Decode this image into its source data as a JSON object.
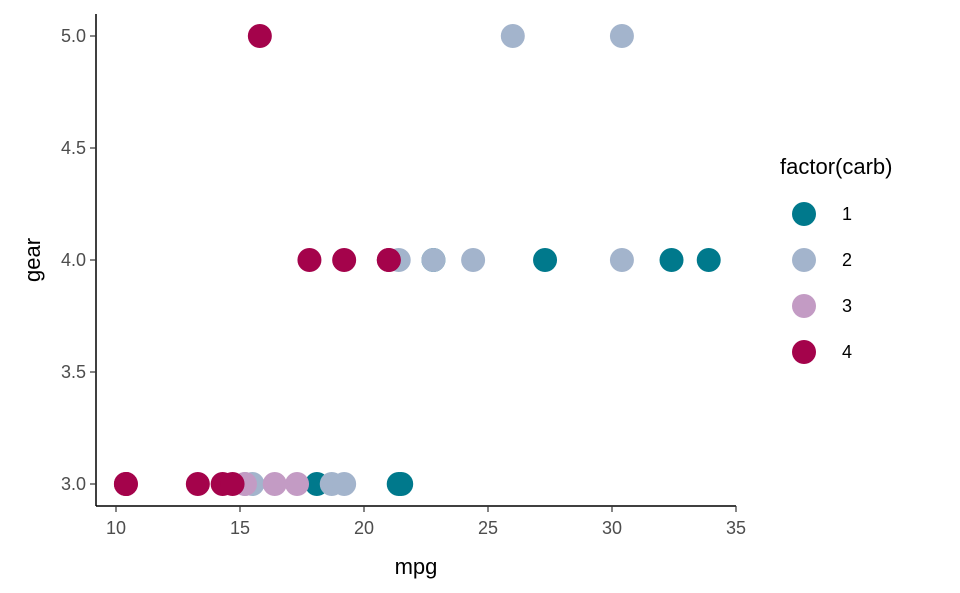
{
  "chart_data": {
    "type": "scatter",
    "xlabel": "mpg",
    "ylabel": "gear",
    "xlim": [
      9.2,
      35.0
    ],
    "ylim": [
      2.9,
      5.1
    ],
    "x_ticks": [
      10,
      15,
      20,
      25,
      30,
      35
    ],
    "y_ticks": [
      3.0,
      3.5,
      4.0,
      4.5,
      5.0
    ],
    "x_tick_labels": [
      "10",
      "15",
      "20",
      "25",
      "30",
      "35"
    ],
    "y_tick_labels": [
      "3.0",
      "3.5",
      "4.0",
      "4.5",
      "5.0"
    ],
    "grid": false,
    "legend": {
      "title": "factor(carb)",
      "position": "right",
      "entries": [
        {
          "label": "1",
          "color": "#00798c"
        },
        {
          "label": "2",
          "color": "#a3b4cc"
        },
        {
          "label": "3",
          "color": "#c39bc4"
        },
        {
          "label": "4",
          "color": "#a4034b"
        }
      ]
    },
    "series": [
      {
        "name": "1",
        "color": "#00798c",
        "points": [
          {
            "x": 21.4,
            "y": 3
          },
          {
            "x": 18.1,
            "y": 3
          },
          {
            "x": 21.5,
            "y": 3
          },
          {
            "x": 22.8,
            "y": 4
          },
          {
            "x": 32.4,
            "y": 4
          },
          {
            "x": 33.9,
            "y": 4
          },
          {
            "x": 27.3,
            "y": 4
          }
        ]
      },
      {
        "name": "2",
        "color": "#a3b4cc",
        "points": [
          {
            "x": 18.7,
            "y": 3
          },
          {
            "x": 15.5,
            "y": 3
          },
          {
            "x": 15.2,
            "y": 3
          },
          {
            "x": 19.2,
            "y": 3
          },
          {
            "x": 24.4,
            "y": 4
          },
          {
            "x": 22.8,
            "y": 4
          },
          {
            "x": 30.4,
            "y": 4
          },
          {
            "x": 21.4,
            "y": 4
          },
          {
            "x": 26.0,
            "y": 5
          },
          {
            "x": 30.4,
            "y": 5
          }
        ]
      },
      {
        "name": "3",
        "color": "#c39bc4",
        "points": [
          {
            "x": 16.4,
            "y": 3
          },
          {
            "x": 17.3,
            "y": 3
          },
          {
            "x": 15.2,
            "y": 3
          }
        ]
      },
      {
        "name": "4",
        "color": "#a4034b",
        "points": [
          {
            "x": 14.3,
            "y": 3
          },
          {
            "x": 10.4,
            "y": 3
          },
          {
            "x": 10.4,
            "y": 3
          },
          {
            "x": 14.7,
            "y": 3
          },
          {
            "x": 13.3,
            "y": 3
          },
          {
            "x": 21.0,
            "y": 4
          },
          {
            "x": 21.0,
            "y": 4
          },
          {
            "x": 19.2,
            "y": 4
          },
          {
            "x": 17.8,
            "y": 4
          },
          {
            "x": 15.8,
            "y": 5
          }
        ]
      }
    ]
  }
}
